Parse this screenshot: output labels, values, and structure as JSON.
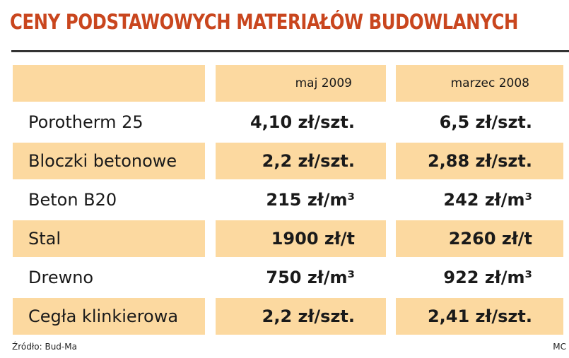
{
  "header": {
    "title": "CENY PODSTAWOWYCH MATERIAŁÓW BUDOWLANYCH"
  },
  "table": {
    "columns": [
      "maj 2009",
      "marzec 2008"
    ],
    "rows": [
      [
        "Porotherm 25",
        "4,10 zł/szt.",
        "6,5 zł/szt."
      ],
      [
        "Bloczki betonowe",
        "2,2 zł/szt.",
        "2,88 zł/szt."
      ],
      [
        "Beton B20",
        "215 zł/m³",
        "242 zł/m³"
      ],
      [
        "Stal",
        "1900 zł/t",
        "2260 zł/t"
      ],
      [
        "Drewno",
        "750 zł/m³",
        "922 zł/m³"
      ],
      [
        "Cegła klinkierowa",
        "2,2 zł/szt.",
        "2,41 zł/szt."
      ]
    ]
  },
  "footer": {
    "source": "Źródło: Bud-Ma",
    "credit": "MC"
  }
}
